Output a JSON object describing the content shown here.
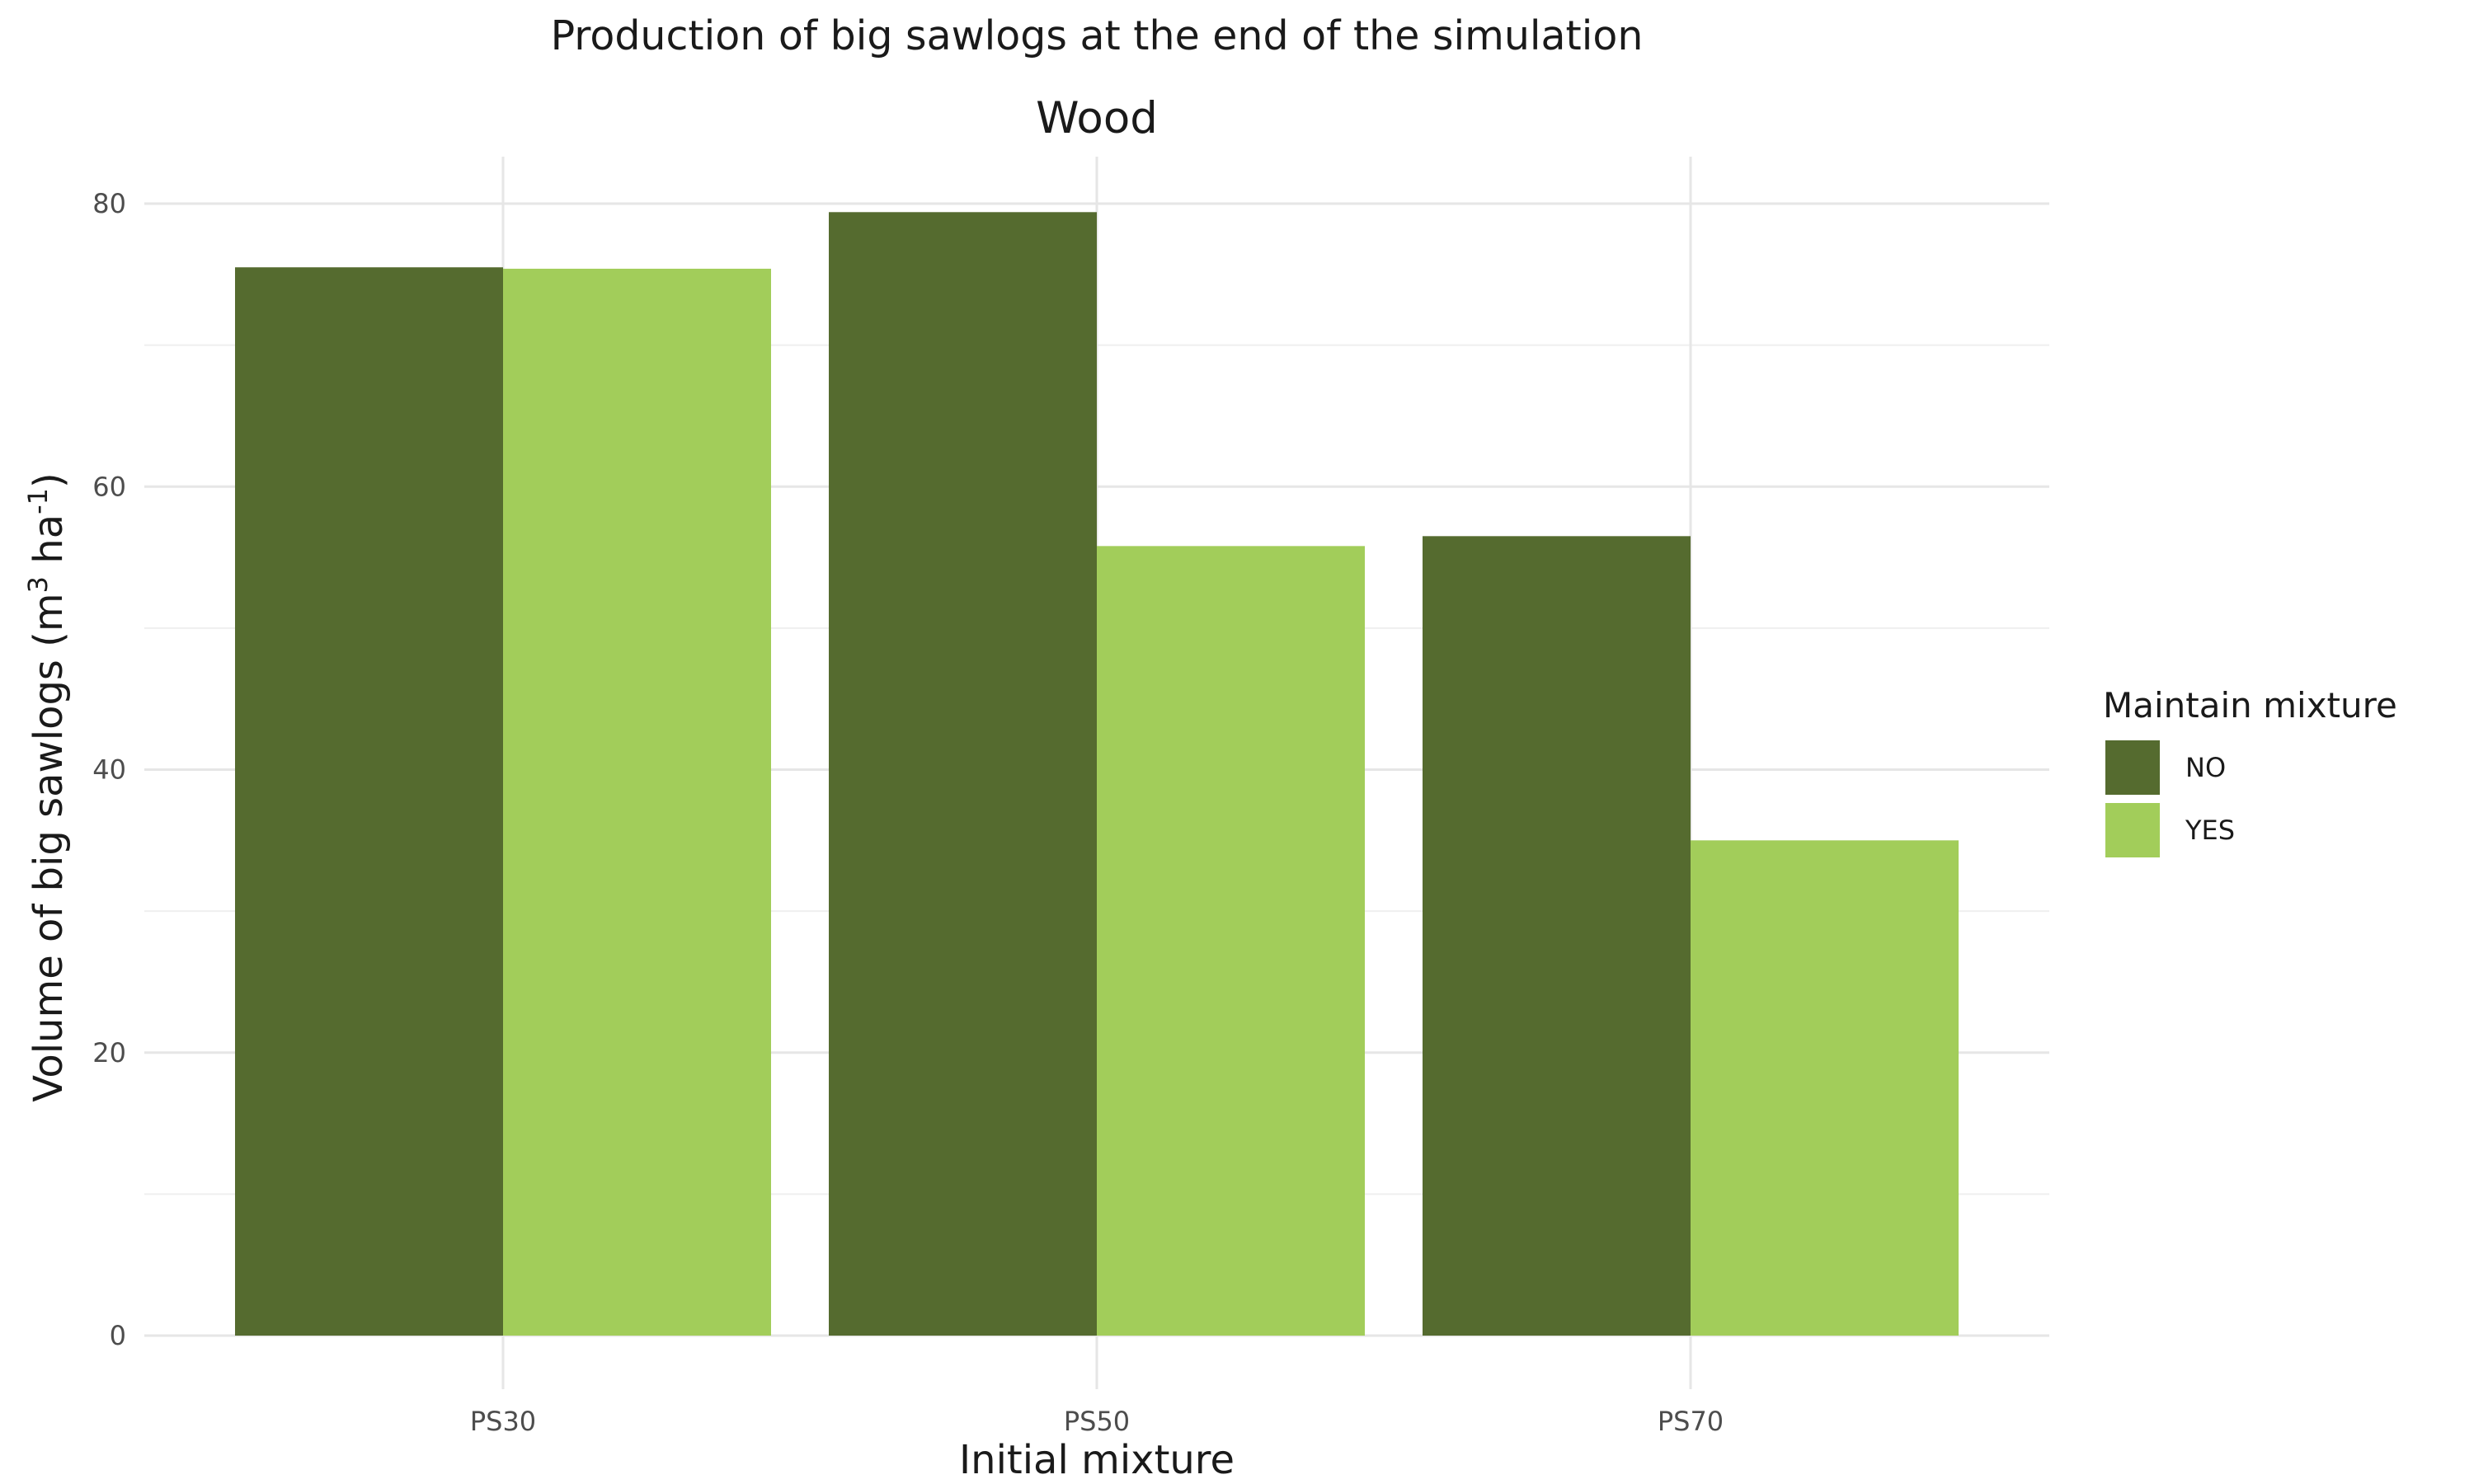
{
  "chart_data": {
    "type": "bar",
    "title": "Production of big sawlogs at the end of the simulation",
    "facet_label": "Wood",
    "xlabel": "Initial mixture",
    "ylabel_text": "Volume of big sawlogs (m",
    "ylabel_sup1": "3",
    "ylabel_mid": " ha",
    "ylabel_sup2": "-1",
    "ylabel_end": ")",
    "categories": [
      "PS30",
      "PS50",
      "PS70"
    ],
    "series": [
      {
        "name": "NO",
        "color": "#556b2f",
        "values": [
          75.5,
          79.4,
          56.5
        ]
      },
      {
        "name": "YES",
        "color": "#a2cd5a",
        "values": [
          75.4,
          55.8,
          35.0
        ]
      }
    ],
    "ylim": [
      0,
      83.3
    ],
    "yticks": [
      0,
      20,
      40,
      60,
      80
    ],
    "grid": true,
    "legend": {
      "title": "Maintain mixture",
      "position": "right"
    }
  }
}
